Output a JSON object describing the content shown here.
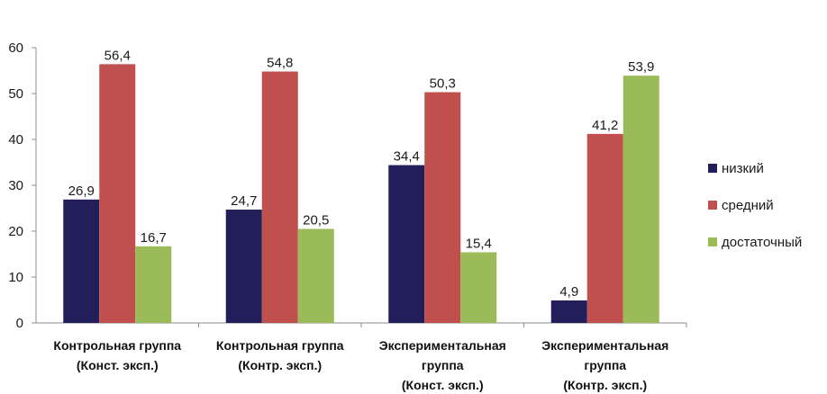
{
  "chart_data": {
    "type": "bar",
    "categories": [
      [
        "Контрольная группа",
        "(Конст. эксп.)"
      ],
      [
        "Контрольная группа",
        "(Контр. эксп.)"
      ],
      [
        "Экспериментальная",
        "группа",
        "(Конст. эксп.)"
      ],
      [
        "Экспериментальная",
        "группа",
        "(Контр. эксп.)"
      ]
    ],
    "series": [
      {
        "name": "низкий",
        "color": "#221e5a",
        "values": [
          26.9,
          24.7,
          34.4,
          4.9
        ],
        "labels": [
          "26,9",
          "24,7",
          "34,4",
          "4,9"
        ]
      },
      {
        "name": "средний",
        "color": "#c0504d",
        "values": [
          56.4,
          54.8,
          50.3,
          41.2
        ],
        "labels": [
          "56,4",
          "54,8",
          "50,3",
          "41,2"
        ]
      },
      {
        "name": "достаточный",
        "color": "#9bbb59",
        "values": [
          16.7,
          20.5,
          15.4,
          53.9
        ],
        "labels": [
          "16,7",
          "20,5",
          "15,4",
          "53,9"
        ]
      }
    ],
    "ylim": [
      0,
      60
    ],
    "yticks": [
      "0",
      "10",
      "20",
      "30",
      "40",
      "50",
      "60"
    ],
    "grid": false,
    "legend": "right"
  }
}
